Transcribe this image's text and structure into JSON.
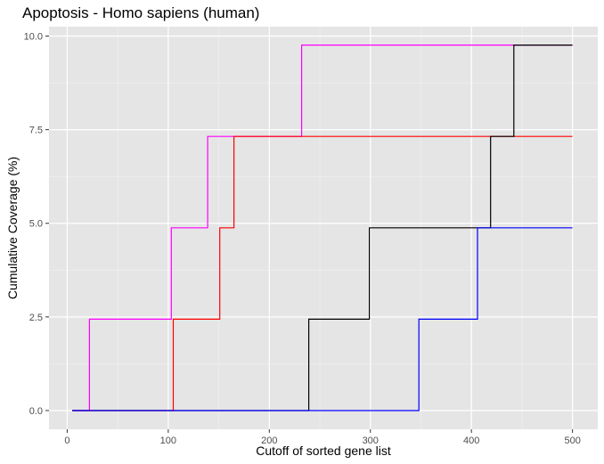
{
  "chart_data": {
    "type": "line",
    "step": true,
    "title": "Apoptosis - Homo sapiens (human)",
    "xlabel": "Cutoff of sorted gene list",
    "ylabel": "Cumulative Coverage (%)",
    "xlim": [
      -18,
      525
    ],
    "ylim": [
      -0.5,
      10.25
    ],
    "xticks": [
      0,
      100,
      200,
      300,
      400,
      500
    ],
    "yticks": [
      0.0,
      2.5,
      5.0,
      7.5,
      10.0
    ],
    "xtick_labels": [
      "0",
      "100",
      "200",
      "300",
      "400",
      "500"
    ],
    "ytick_labels": [
      "0.0",
      "2.5",
      "5.0",
      "7.5",
      "10.0"
    ],
    "grid": true,
    "background": "#e5e5e5",
    "series": [
      {
        "color": "#ff00ff",
        "points": [
          [
            5,
            0
          ],
          [
            22,
            0
          ],
          [
            22,
            2.44
          ],
          [
            103,
            2.44
          ],
          [
            103,
            4.88
          ],
          [
            139,
            4.88
          ],
          [
            139,
            7.32
          ],
          [
            232,
            7.32
          ],
          [
            232,
            9.76
          ],
          [
            500,
            9.76
          ]
        ]
      },
      {
        "color": "#ff0000",
        "points": [
          [
            5,
            0
          ],
          [
            105,
            0
          ],
          [
            105,
            2.44
          ],
          [
            151,
            2.44
          ],
          [
            151,
            4.88
          ],
          [
            165,
            4.88
          ],
          [
            165,
            7.32
          ],
          [
            500,
            7.32
          ]
        ]
      },
      {
        "color": "#000000",
        "points": [
          [
            5,
            0
          ],
          [
            239,
            0
          ],
          [
            239,
            2.44
          ],
          [
            299,
            2.44
          ],
          [
            299,
            4.88
          ],
          [
            419,
            4.88
          ],
          [
            419,
            7.32
          ],
          [
            442,
            7.32
          ],
          [
            442,
            9.76
          ],
          [
            500,
            9.76
          ]
        ]
      },
      {
        "color": "#0000ff",
        "points": [
          [
            5,
            0
          ],
          [
            348,
            0
          ],
          [
            348,
            2.44
          ],
          [
            406,
            2.44
          ],
          [
            406,
            4.88
          ],
          [
            500,
            4.88
          ]
        ]
      }
    ]
  }
}
